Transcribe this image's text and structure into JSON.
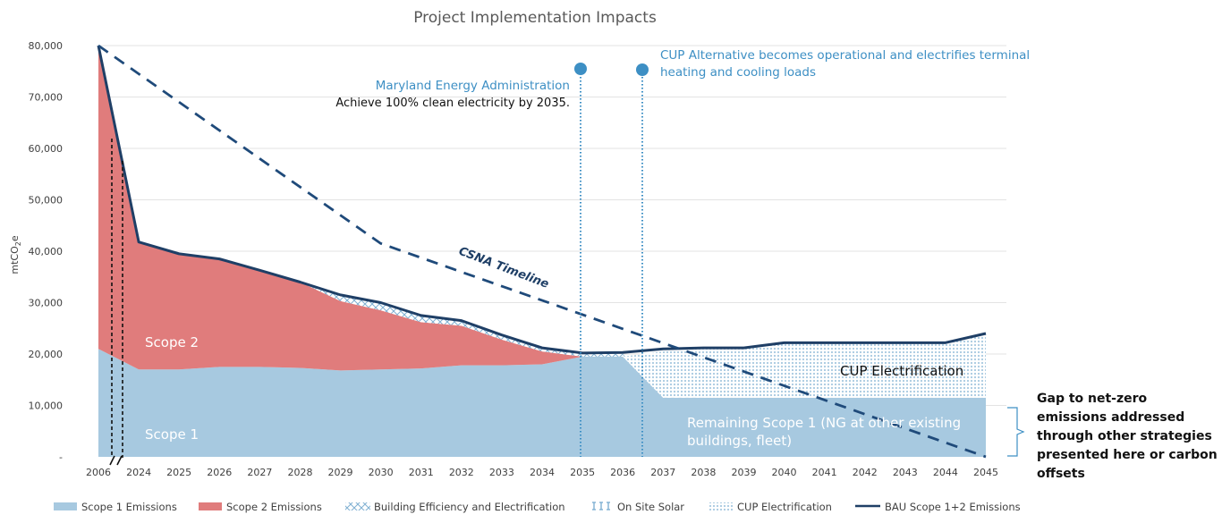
{
  "chart_data": {
    "type": "area",
    "title": "Project Implementation Impacts",
    "ylabel": "mtCO2e",
    "ylim": [
      0,
      80000
    ],
    "yticks": [
      0,
      10000,
      20000,
      30000,
      40000,
      50000,
      60000,
      70000,
      80000
    ],
    "ytick_labels": [
      "-",
      "10,000",
      "20,000",
      "30,000",
      "40,000",
      "50,000",
      "60,000",
      "70,000",
      "80,000"
    ],
    "categories": [
      "2006",
      "2024",
      "2025",
      "2026",
      "2027",
      "2028",
      "2029",
      "2030",
      "2031",
      "2032",
      "2033",
      "2034",
      "2035",
      "2036",
      "2037",
      "2038",
      "2039",
      "2040",
      "2041",
      "2042",
      "2043",
      "2044",
      "2045"
    ],
    "series": [
      {
        "name": "Scope 1 Emissions",
        "values": [
          21000,
          17000,
          17000,
          17500,
          17500,
          17300,
          16800,
          17000,
          17200,
          17800,
          17800,
          18000,
          19500,
          19500,
          11500,
          11500,
          11500,
          11500,
          11500,
          11500,
          11500,
          11500,
          11500
        ]
      },
      {
        "name": "Scope 2 Emissions",
        "values": [
          59000,
          25000,
          22500,
          21000,
          18800,
          16700,
          13500,
          11500,
          9000,
          7700,
          5000,
          2500,
          0,
          0,
          0,
          0,
          0,
          0,
          0,
          0,
          0,
          0,
          0
        ]
      },
      {
        "name": "Building Efficiency and Electrification",
        "values": [
          0,
          0,
          0,
          0,
          0,
          0,
          1200,
          1500,
          1300,
          1000,
          900,
          700,
          500,
          500,
          500,
          0,
          0,
          0,
          0,
          0,
          0,
          0,
          0
        ]
      },
      {
        "name": "On Site Solar",
        "values": [
          0,
          0,
          0,
          0,
          0,
          0,
          0,
          0,
          0,
          0,
          0,
          0,
          0,
          0,
          0,
          0,
          0,
          0,
          0,
          0,
          0,
          0,
          0
        ]
      },
      {
        "name": "CUP Electrification",
        "values": [
          0,
          0,
          0,
          0,
          0,
          0,
          0,
          0,
          0,
          0,
          0,
          0,
          0,
          0,
          9000,
          9700,
          9700,
          10700,
          10700,
          10700,
          10700,
          10700,
          12500
        ]
      },
      {
        "name": "BAU Scope 1+2 Emissions",
        "values": [
          80000,
          41800,
          39500,
          38500,
          36300,
          34000,
          31500,
          30000,
          27500,
          26500,
          23700,
          21200,
          20200,
          20300,
          21000,
          21200,
          21200,
          22200,
          22200,
          22200,
          22200,
          22200,
          24000
        ]
      }
    ],
    "csna_timeline": {
      "label": "CSNA Timeline",
      "points": [
        [
          "2006",
          80000
        ],
        [
          "2030",
          41500
        ],
        [
          "2045",
          0
        ]
      ]
    },
    "annotations": {
      "mea_title": "Maryland Energy Administration",
      "mea_text": "Achieve 100% clean electricity by 2035.",
      "cup_text_line1": "CUP Alternative becomes operational and electrifies terminal",
      "cup_text_line2": "heating and cooling loads",
      "scope2_label": "Scope 2",
      "scope1_label": "Scope 1",
      "cup_area_label": "CUP Electrification",
      "remaining_line1": "Remaining Scope 1 (NG at other existing",
      "remaining_line2": "buildings, fleet)",
      "gap_line1": "Gap to net-zero",
      "gap_line2": "emissions addressed",
      "gap_line3": "through other strategies",
      "gap_line4": "presented here or carbon",
      "gap_line5": "offsets"
    },
    "legend": [
      "Scope 1 Emissions",
      "Scope 2 Emissions",
      "Building Efficiency and Electrification",
      "On Site Solar",
      "CUP Electrification",
      "BAU Scope 1+2 Emissions"
    ],
    "legend_position": "bottom",
    "grid": true
  },
  "colors": {
    "scope1": "#a7c9e0",
    "scope2": "#e07c7c",
    "bau": "#1f3f66",
    "csna": "#1f4a7a",
    "marker": "#3d8fc4"
  }
}
